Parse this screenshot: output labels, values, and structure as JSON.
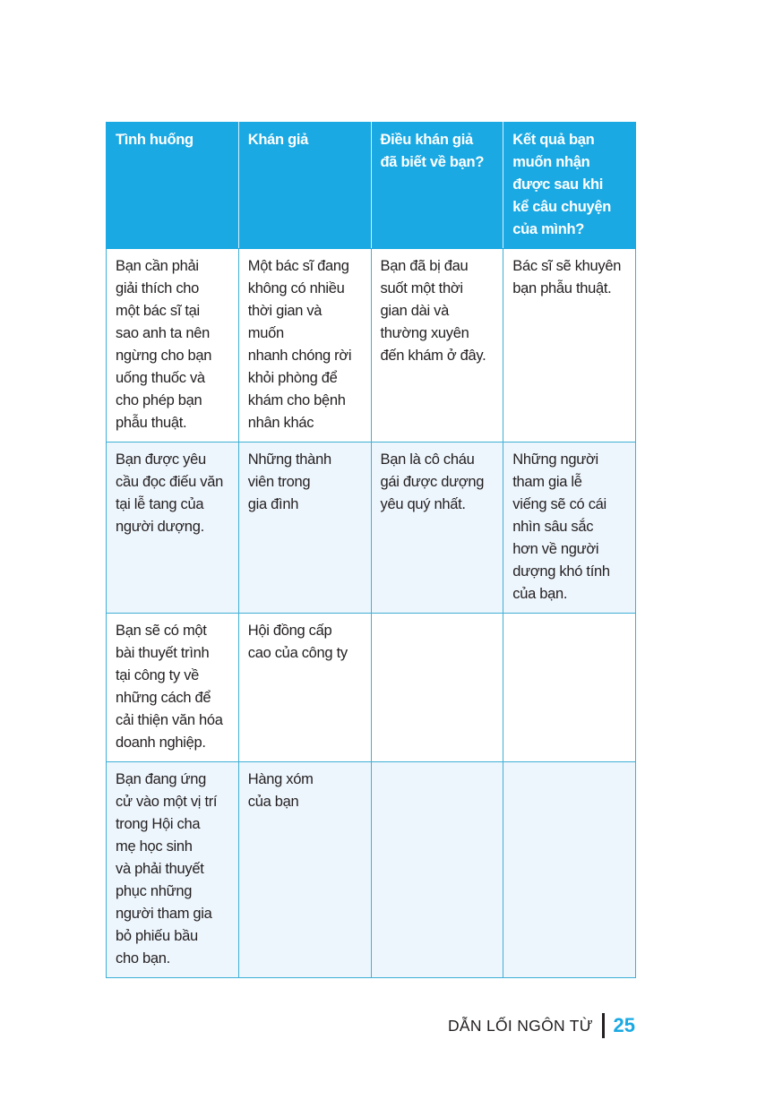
{
  "table": {
    "headers": [
      "Tình huống",
      "Khán giả",
      "Điều khán giả\nđã biết về bạn?",
      "Kết quả bạn\nmuốn nhận\nđược sau khi\nkể câu chuyện\ncủa mình?"
    ],
    "rows": [
      [
        "Bạn cần phải\ngiải thích cho\nmột bác sĩ tại\nsao anh ta nên\nngừng cho bạn\nuống thuốc và\ncho phép bạn\nphẫu thuật.",
        "Một bác sĩ đang\nkhông có nhiều\nthời gian và muốn\nnhanh chóng rời\nkhỏi phòng để\nkhám cho bệnh\nnhân khác",
        "Bạn đã bị đau\nsuốt một thời\ngian dài và\nthường xuyên\nđến khám ở đây.",
        "Bác sĩ sẽ khuyên\nbạn phẫu thuật."
      ],
      [
        "Bạn được yêu\ncầu đọc điếu văn\ntại lễ tang của\nngười dượng.",
        "Những thành\nviên trong\ngia đình",
        "Bạn là cô cháu\ngái được dượng\nyêu quý nhất.",
        "Những người\ntham gia lễ\nviếng sẽ có cái\nnhìn sâu sắc\nhơn về người\ndượng khó tính\ncủa bạn."
      ],
      [
        "Bạn sẽ có một\nbài thuyết trình\ntại công ty về\nnhững cách để\ncải thiện văn hóa\ndoanh nghiệp.",
        "Hội đồng cấp\ncao của công ty",
        "",
        ""
      ],
      [
        "Bạn đang ứng\ncử vào một vị trí\ntrong Hội cha\nmẹ học sinh\nvà phải thuyết\nphục những\nngười tham gia\nbỏ phiếu bầu\ncho bạn.",
        "Hàng xóm\ncủa bạn",
        "",
        ""
      ]
    ]
  },
  "footer": {
    "book_title": "DẪN LỐI NGÔN TỪ",
    "page_number": "25"
  },
  "colors": {
    "accent": "#1aa9e3",
    "row_tint": "#eef6fd",
    "border": "#3fb0d6"
  }
}
